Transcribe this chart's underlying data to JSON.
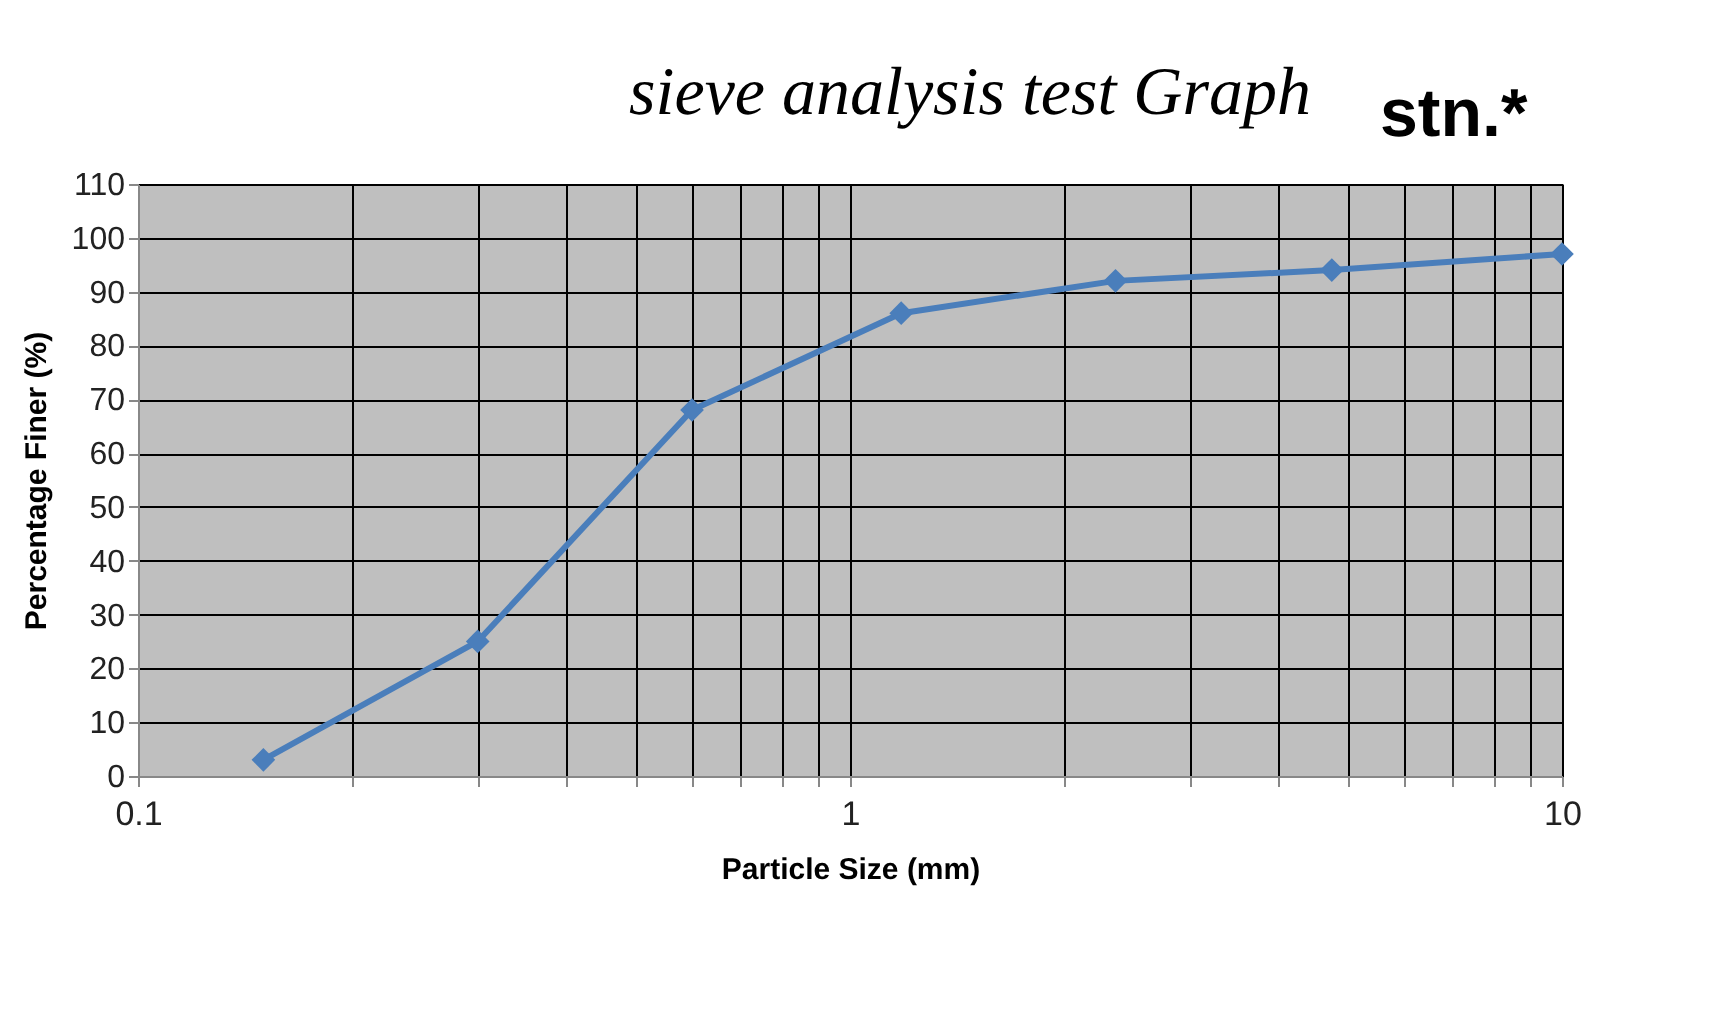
{
  "chart_data": {
    "type": "line",
    "title": "sieve analysis test Graph",
    "annotations": [
      "stn.*"
    ],
    "xlabel": "Particle  Size (mm)",
    "ylabel": "Percentage Finer (%)",
    "x": [
      0.15,
      0.3,
      0.6,
      1.18,
      2.36,
      4.75,
      10
    ],
    "series": [
      {
        "color": "#4a7ebb",
        "values": [
          3,
          25,
          68,
          86,
          92,
          94,
          97
        ]
      }
    ],
    "log": "x",
    "xlim": [
      0.1,
      10
    ],
    "xticks": [
      0.1,
      {
        "value": 0.2,
        "label": null
      },
      {
        "value": 0.3,
        "label": null
      },
      {
        "value": 0.4,
        "label": null
      },
      {
        "value": 0.5,
        "label": null
      },
      {
        "value": 0.6,
        "label": null
      },
      {
        "value": 0.7,
        "label": null
      },
      {
        "value": 0.8,
        "label": null
      },
      {
        "value": 0.9,
        "label": null
      },
      1,
      {
        "value": 2,
        "label": null
      },
      {
        "value": 3,
        "label": null
      },
      {
        "value": 4,
        "label": null
      },
      {
        "value": 5,
        "label": null
      },
      {
        "value": 6,
        "label": null
      },
      {
        "value": 7,
        "label": null
      },
      {
        "value": 8,
        "label": null
      },
      {
        "value": 9,
        "label": null
      },
      10
    ],
    "ylim": [
      0,
      110
    ],
    "yticks": [
      0,
      10,
      20,
      30,
      40,
      50,
      60,
      70,
      80,
      90,
      100,
      110
    ],
    "grid": true,
    "marker": "diamond",
    "line_style": "solid",
    "legend": false
  }
}
